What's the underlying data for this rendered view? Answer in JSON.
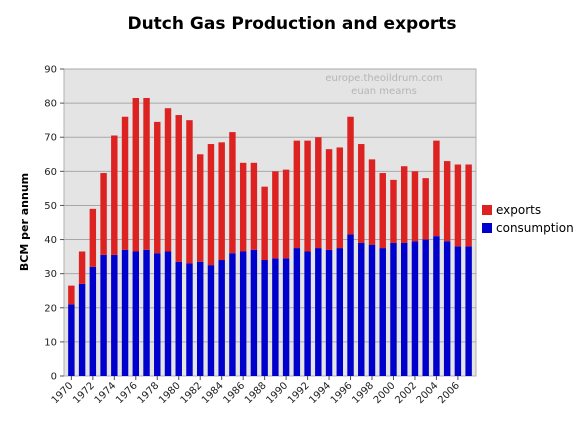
{
  "chart_data": {
    "type": "bar",
    "stacked": true,
    "title": "Dutch Gas Production and exports",
    "xlabel": "",
    "ylabel": "BCM per annum",
    "ylim": [
      0,
      90
    ],
    "yticks": [
      0,
      10,
      20,
      30,
      40,
      50,
      60,
      70,
      80,
      90
    ],
    "grid": true,
    "legend_position": "right",
    "watermark": [
      "europe.theoildrum.com",
      "euan mearns"
    ],
    "categories": [
      "1970",
      "1971",
      "1972",
      "1973",
      "1974",
      "1975",
      "1976",
      "1977",
      "1978",
      "1979",
      "1980",
      "1981",
      "1982",
      "1983",
      "1984",
      "1985",
      "1986",
      "1987",
      "1988",
      "1989",
      "1990",
      "1991",
      "1992",
      "1993",
      "1994",
      "1995",
      "1996",
      "1997",
      "1998",
      "1999",
      "2000",
      "2001",
      "2002",
      "2003",
      "2004",
      "2005",
      "2006",
      "2007"
    ],
    "x_tick_labels": [
      "1970",
      "1972",
      "1974",
      "1976",
      "1978",
      "1980",
      "1982",
      "1984",
      "1986",
      "1988",
      "1990",
      "1992",
      "1994",
      "1996",
      "1998",
      "2000",
      "2002",
      "2004",
      "2006"
    ],
    "series": [
      {
        "name": "consumption",
        "color": "#0000cc",
        "values": [
          21.0,
          27.0,
          32.0,
          35.5,
          35.5,
          37.0,
          36.5,
          37.0,
          36.0,
          36.5,
          33.5,
          33.0,
          33.5,
          32.5,
          34.0,
          36.0,
          36.5,
          37.0,
          34.0,
          34.5,
          34.5,
          37.5,
          36.5,
          37.5,
          37.0,
          37.5,
          41.5,
          39.0,
          38.5,
          37.5,
          39.0,
          39.0,
          39.5,
          40.0,
          41.0,
          39.5,
          38.0,
          38.0
        ]
      },
      {
        "name": "exports",
        "color": "#dd2222",
        "values": [
          5.5,
          9.5,
          17.0,
          24.0,
          35.0,
          39.0,
          45.0,
          44.5,
          38.5,
          42.0,
          43.0,
          42.0,
          31.5,
          35.5,
          34.5,
          35.5,
          26.0,
          25.5,
          21.5,
          25.5,
          26.0,
          31.5,
          32.5,
          32.5,
          29.5,
          29.5,
          34.5,
          29.0,
          25.0,
          22.0,
          18.5,
          22.5,
          20.5,
          18.0,
          28.0,
          23.5,
          24.0,
          24.0
        ]
      }
    ]
  }
}
